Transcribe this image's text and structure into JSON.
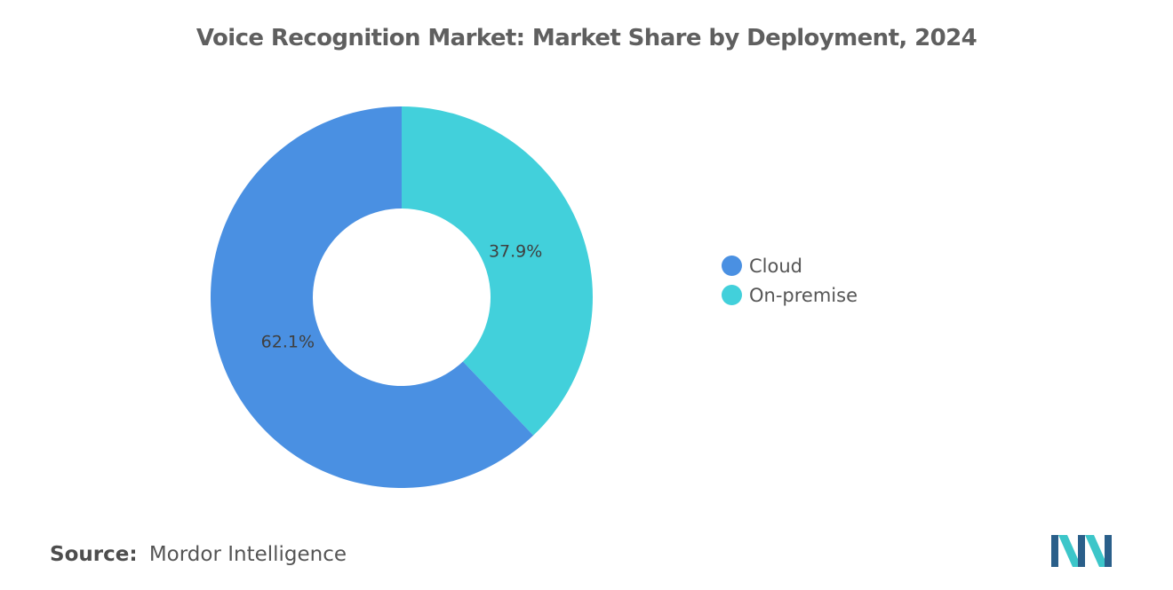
{
  "chart_data": {
    "type": "pie",
    "variant": "donut",
    "title": "Voice Recognition Market: Market Share by Deployment, 2024",
    "slices": [
      {
        "name": "Cloud",
        "value": 62.1,
        "label": "62.1%",
        "color": "#4a90e2"
      },
      {
        "name": "On-premise",
        "value": 37.9,
        "label": "37.9%",
        "color": "#42d0db"
      }
    ],
    "legend_position": "right"
  },
  "legend": {
    "items": [
      {
        "label": "Cloud",
        "color": "#4a90e2"
      },
      {
        "label": "On-premise",
        "color": "#42d0db"
      }
    ]
  },
  "source": {
    "label": "Source:",
    "text": "Mordor Intelligence"
  },
  "logo": {
    "icon": "mordor-intelligence-logo",
    "colors": [
      "#2a5f8a",
      "#3cc6c9"
    ]
  }
}
